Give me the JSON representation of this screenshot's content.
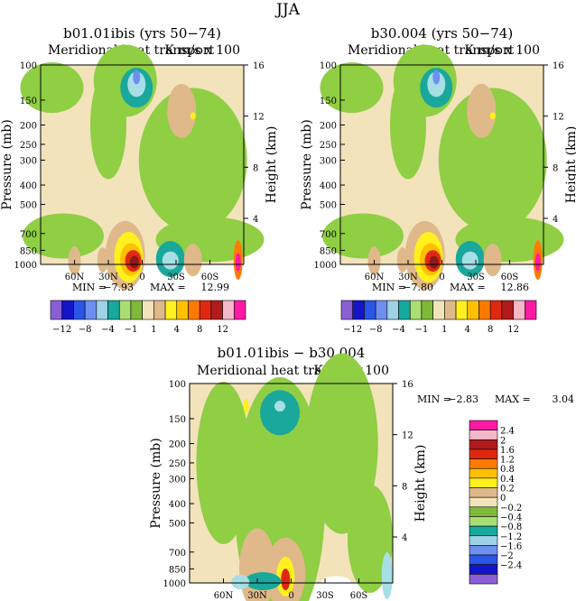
{
  "figure_title": "JJA",
  "colors": {
    "palette": [
      "#8a5fd6",
      "#1414c8",
      "#2a55e6",
      "#6f8ff0",
      "#9ed2e6",
      "#16a99e",
      "#a9de72",
      "#7fb93a",
      "#f2e3bb",
      "#dfb98a",
      "#fff01e",
      "#ffc000",
      "#ff7a00",
      "#e02810",
      "#b01c1c",
      "#f5b8c8",
      "#ff1aa5"
    ],
    "field": {
      "neg_big": "#1aa79c",
      "neg_mid": "#a6dfe6",
      "neg_sm": "#90ce44",
      "bg": "#f2e3bb",
      "pos_sm": "#dfb98a",
      "pos_mid": "#fff01e",
      "pos_big": "#e02810",
      "pos_max": "#8b1a1a",
      "blue": "#6f8ff0"
    }
  },
  "chart_data": [
    {
      "type": "heatmap",
      "id": "panel-left",
      "title": "b01.01ibis (yrs 50−74)",
      "subtitle": "Meridional heat transport",
      "units": "K m/s x 100",
      "ylabel": "Pressure (mb)",
      "ylabel_right": "Height (km)",
      "y_ticks": [
        100,
        150,
        200,
        250,
        300,
        400,
        500,
        700,
        850,
        1000
      ],
      "y_ticks_right": [
        16,
        12,
        8,
        4
      ],
      "x_ticks": [
        "60N",
        "30N",
        "0",
        "30S",
        "60S"
      ],
      "x_range": [
        90,
        -90
      ],
      "min_label": "MIN =",
      "min": "−7.93",
      "max_label": "MAX =",
      "max": "12.99",
      "colorbar": {
        "labels": [
          "−12",
          "−8",
          "−4",
          "−1",
          "1",
          "4",
          "8",
          "12"
        ]
      }
    },
    {
      "type": "heatmap",
      "id": "panel-right",
      "title": "b30.004 (yrs 50−74)",
      "subtitle": "Meridional heat transport",
      "units": "K m/s x 100",
      "ylabel": "Pressure (mb)",
      "ylabel_right": "Height (km)",
      "y_ticks": [
        100,
        150,
        200,
        250,
        300,
        400,
        500,
        700,
        850,
        1000
      ],
      "y_ticks_right": [
        16,
        12,
        8,
        4
      ],
      "x_ticks": [
        "60N",
        "30N",
        "0",
        "30S",
        "60S"
      ],
      "x_range": [
        90,
        -90
      ],
      "min_label": "MIN =",
      "min": "−7.80",
      "max_label": "MAX =",
      "max": "12.86",
      "colorbar": {
        "labels": [
          "−12",
          "−8",
          "−4",
          "−1",
          "1",
          "4",
          "8",
          "12"
        ]
      }
    },
    {
      "type": "heatmap",
      "id": "panel-diff",
      "title": "b01.01ibis − b30.004",
      "subtitle": "Meridional heat transport",
      "units": "K m/s x 100",
      "ylabel": "Pressure (mb)",
      "ylabel_right": "Height (km)",
      "y_ticks": [
        100,
        150,
        200,
        250,
        300,
        400,
        500,
        700,
        850,
        1000
      ],
      "y_ticks_right": [
        16,
        12,
        8,
        4
      ],
      "x_ticks": [
        "60N",
        "30N",
        "0",
        "30S",
        "60S"
      ],
      "x_range": [
        90,
        -90
      ],
      "min_label": "MIN =",
      "min": "−2.83",
      "max_label": "MAX =",
      "max": "3.04",
      "colorbar": {
        "labels": [
          "2.4",
          "2",
          "1.6",
          "1.2",
          "0.8",
          "0.4",
          "0.2",
          "0",
          "−0.2",
          "−0.4",
          "−0.8",
          "−1.2",
          "−1.6",
          "−2",
          "−2.4"
        ]
      }
    }
  ]
}
